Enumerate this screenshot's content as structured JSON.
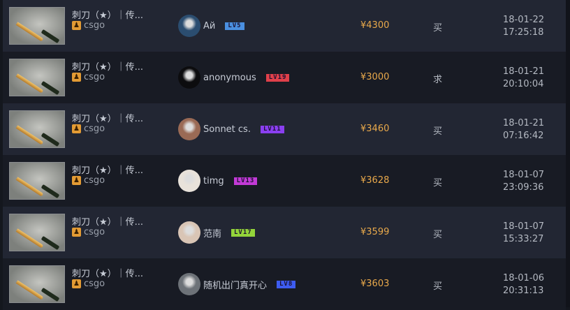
{
  "rows": [
    {
      "item": "刺刀（★）｜传...",
      "game": "csgo",
      "user": "Ай",
      "level": "LV5",
      "level_color": "#4a8fe0",
      "avatar": "#2b4d70",
      "price": "¥4300",
      "type": "买",
      "date": "18-01-22",
      "time": "17:25:18"
    },
    {
      "item": "刺刀（★）｜传...",
      "game": "csgo",
      "user": "anonymous",
      "level": "LV19",
      "level_color": "#e0404a",
      "avatar": "#0c0c0e",
      "price": "¥3000",
      "type": "求",
      "date": "18-01-21",
      "time": "20:10:04"
    },
    {
      "item": "刺刀（★）｜传...",
      "game": "csgo",
      "user": "Sonnet cs.",
      "level": "LV11",
      "level_color": "#8a3ff0",
      "avatar": "#9a6a55",
      "price": "¥3460",
      "type": "买",
      "date": "18-01-21",
      "time": "07:16:42"
    },
    {
      "item": "刺刀（★）｜传...",
      "game": "csgo",
      "user": "timg",
      "level": "LV13",
      "level_color": "#c23ad6",
      "avatar": "#e8e2da",
      "price": "¥3628",
      "type": "买",
      "date": "18-01-07",
      "time": "23:09:36"
    },
    {
      "item": "刺刀（★）｜传...",
      "game": "csgo",
      "user": "范南",
      "level": "LV17",
      "level_color": "#93d43a",
      "avatar": "#d9c5b5",
      "price": "¥3599",
      "type": "买",
      "date": "18-01-07",
      "time": "15:33:27"
    },
    {
      "item": "刺刀（★）｜传...",
      "game": "csgo",
      "user": "随机出门真开心",
      "level": "LV8",
      "level_color": "#3d5cf0",
      "avatar": "#6d7278",
      "price": "¥3603",
      "type": "买",
      "date": "18-01-06",
      "time": "20:31:13"
    }
  ]
}
